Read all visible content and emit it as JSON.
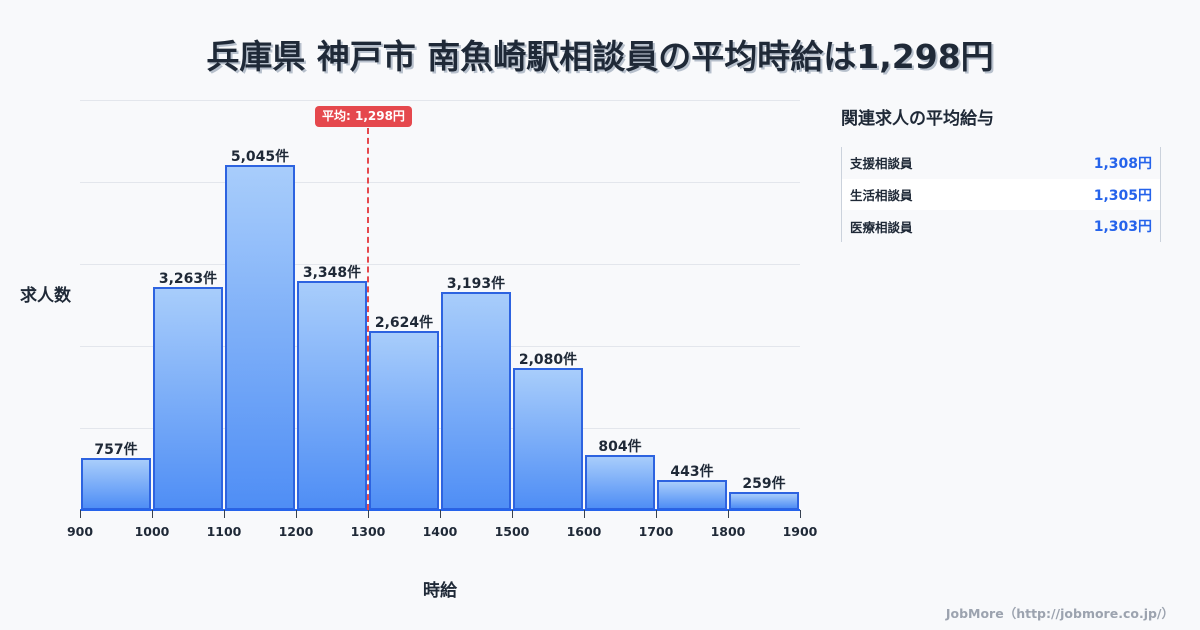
{
  "title": "兵庫県 神戸市 南魚崎駅相談員の平均時給は1,298円",
  "chart": {
    "y_label": "求人数",
    "x_label": "時給",
    "average_badge": "平均: 1,298円",
    "accent_color": "#2563eb",
    "average_color": "#e5484d",
    "bar_labels": [
      "757件",
      "3,263件",
      "5,045件",
      "3,348件",
      "2,624件",
      "3,193件",
      "2,080件",
      "804件",
      "443件",
      "259件"
    ],
    "ticks": [
      "900",
      "1000",
      "1100",
      "1200",
      "1300",
      "1400",
      "1500",
      "1600",
      "1700",
      "1800",
      "1900"
    ]
  },
  "chart_data": {
    "type": "bar",
    "title": "兵庫県 神戸市 南魚崎駅相談員の平均時給は1,298円",
    "xlabel": "時給",
    "ylabel": "求人数",
    "bins": [
      [
        900,
        1000
      ],
      [
        1000,
        1100
      ],
      [
        1100,
        1200
      ],
      [
        1200,
        1300
      ],
      [
        1300,
        1400
      ],
      [
        1400,
        1500
      ],
      [
        1500,
        1600
      ],
      [
        1600,
        1700
      ],
      [
        1700,
        1800
      ],
      [
        1800,
        1900
      ]
    ],
    "categories": [
      "900-1000",
      "1000-1100",
      "1100-1200",
      "1200-1300",
      "1300-1400",
      "1400-1500",
      "1500-1600",
      "1600-1700",
      "1700-1800",
      "1800-1900"
    ],
    "values": [
      757,
      3263,
      5045,
      3348,
      2624,
      3193,
      2080,
      804,
      443,
      259
    ],
    "value_unit": "件",
    "x_ticks": [
      900,
      1000,
      1100,
      1200,
      1300,
      1400,
      1500,
      1600,
      1700,
      1800,
      1900
    ],
    "ylim": [
      0,
      6000
    ],
    "grid": true,
    "annotations": [
      {
        "type": "vline",
        "x": 1298,
        "label": "平均: 1,298円",
        "style": "dashed",
        "color": "#e5484d"
      }
    ]
  },
  "side_panel": {
    "title": "関連求人の平均給与",
    "items": [
      {
        "name": "支援相談員",
        "value": "1,308円"
      },
      {
        "name": "生活相談員",
        "value": "1,305円"
      },
      {
        "name": "医療相談員",
        "value": "1,303円"
      }
    ]
  },
  "footer": "JobMore（http://jobmore.co.jp/）"
}
